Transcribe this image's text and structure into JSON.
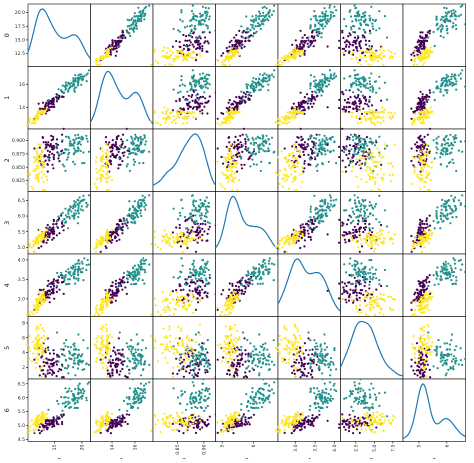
{
  "chart_data": {
    "type": "scatter",
    "title": "",
    "variables": [
      "0",
      "1",
      "2",
      "3",
      "4",
      "5",
      "6"
    ],
    "group_colors": [
      "#440154",
      "#21918c",
      "#fde725"
    ],
    "diagonal": "kde",
    "groups": [
      {
        "mean": [
          14.3,
          14.3,
          0.88,
          5.51,
          3.24,
          2.67,
          5.09
        ],
        "sd": [
          1.2,
          0.5,
          0.016,
          0.23,
          0.18,
          1.17,
          0.14
        ]
      },
      {
        "mean": [
          18.3,
          16.1,
          0.884,
          6.15,
          3.68,
          3.64,
          6.02
        ],
        "sd": [
          1.4,
          0.6,
          0.015,
          0.27,
          0.19,
          1.18,
          0.25
        ]
      },
      {
        "mean": [
          11.9,
          13.2,
          0.849,
          5.23,
          2.85,
          4.79,
          5.12
        ],
        "sd": [
          0.7,
          0.34,
          0.022,
          0.14,
          0.15,
          1.34,
          0.16
        ]
      }
    ],
    "points_per_group": 70,
    "axes": [
      {
        "range": [
          10.5,
          21.2
        ],
        "ticks": [
          {
            "v": 12.5,
            "l": "12.5"
          },
          {
            "v": 15.0,
            "l": "15.0"
          },
          {
            "v": 17.5,
            "l": "17.5"
          },
          {
            "v": 20.0,
            "l": "20.0"
          }
        ],
        "xticks": [
          {
            "v": 15,
            "l": "15"
          },
          {
            "v": 20,
            "l": "20"
          }
        ]
      },
      {
        "range": [
          12.3,
          17.4
        ],
        "ticks": [
          {
            "v": 14,
            "l": "14"
          },
          {
            "v": 16,
            "l": "16"
          }
        ],
        "xticks": [
          {
            "v": 14,
            "l": "14"
          },
          {
            "v": 16,
            "l": "16"
          }
        ]
      },
      {
        "range": [
          0.808,
          0.918
        ],
        "ticks": [
          {
            "v": 0.825,
            "l": "0.825"
          },
          {
            "v": 0.85,
            "l": "0.850"
          },
          {
            "v": 0.875,
            "l": "0.875"
          },
          {
            "v": 0.9,
            "l": "0.900"
          }
        ],
        "xticks": [
          {
            "v": 0.85,
            "l": "0.85"
          },
          {
            "v": 0.9,
            "l": "0.90"
          }
        ]
      },
      {
        "range": [
          4.85,
          6.72
        ],
        "ticks": [
          {
            "v": 5.0,
            "l": "5.0"
          },
          {
            "v": 5.5,
            "l": "5.5"
          },
          {
            "v": 6.0,
            "l": "6.0"
          },
          {
            "v": 6.5,
            "l": "6.5"
          }
        ],
        "xticks": [
          {
            "v": 5,
            "l": "5"
          },
          {
            "v": 6,
            "l": "6"
          }
        ]
      },
      {
        "range": [
          2.6,
          4.1
        ],
        "ticks": [
          {
            "v": 3.0,
            "l": "3.0"
          },
          {
            "v": 3.5,
            "l": "3.5"
          },
          {
            "v": 4.0,
            "l": "4.0"
          }
        ],
        "xticks": [
          {
            "v": 3.0,
            "l": "3.0"
          },
          {
            "v": 3.5,
            "l": "3.5"
          },
          {
            "v": 4.0,
            "l": "4.0"
          }
        ]
      },
      {
        "range": [
          0.7,
          8.6
        ],
        "ticks": [
          {
            "v": 2,
            "l": "2"
          },
          {
            "v": 4,
            "l": "4"
          },
          {
            "v": 6,
            "l": "6"
          },
          {
            "v": 8,
            "l": "8"
          }
        ],
        "xticks": [
          {
            "v": 2.5,
            "l": "2.5"
          },
          {
            "v": 5.0,
            "l": "5.0"
          },
          {
            "v": 7.5,
            "l": "7.5"
          }
        ]
      },
      {
        "range": [
          4.5,
          6.6
        ],
        "ticks": [
          {
            "v": 4.5,
            "l": "4.5"
          },
          {
            "v": 5.0,
            "l": "5.0"
          },
          {
            "v": 5.5,
            "l": "5.5"
          },
          {
            "v": 6.0,
            "l": "6.0"
          },
          {
            "v": 6.5,
            "l": "6.5"
          }
        ],
        "xticks": [
          {
            "v": 5,
            "l": "5"
          },
          {
            "v": 6,
            "l": "6"
          }
        ]
      }
    ]
  }
}
